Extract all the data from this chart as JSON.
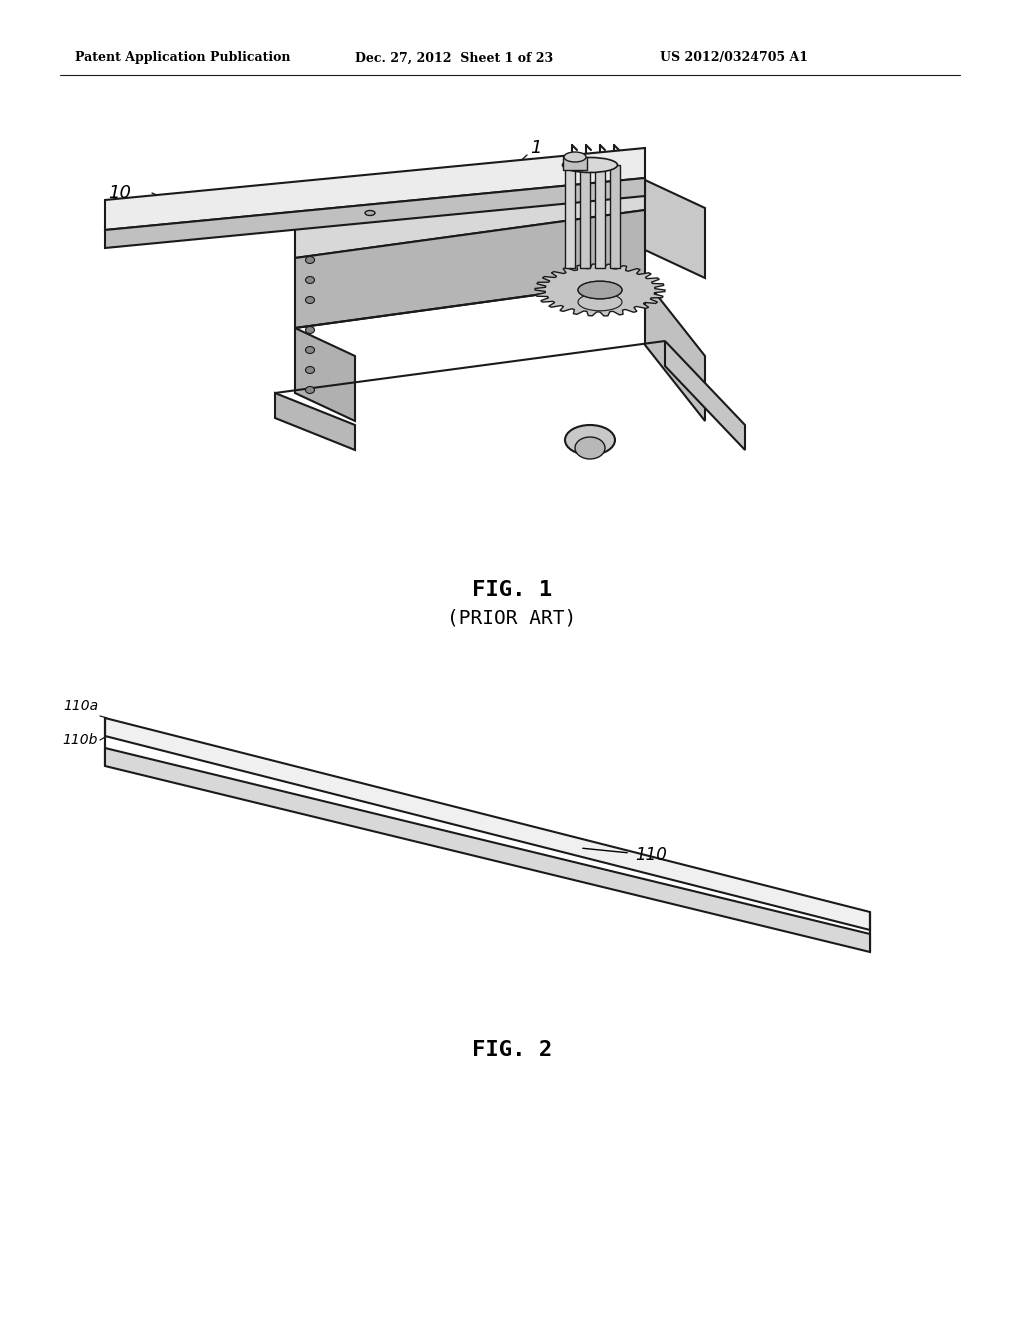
{
  "background_color": "#ffffff",
  "header_left": "Patent Application Publication",
  "header_center": "Dec. 27, 2012  Sheet 1 of 23",
  "header_right": "US 2012/0324705 A1",
  "fig1_label": "FIG. 1",
  "fig1_sublabel": "(PRIOR ART)",
  "fig2_label": "FIG. 2",
  "label_10": "10",
  "label_1": "1",
  "label_110": "110",
  "label_110a": "110a",
  "label_110b": "110b",
  "line_color": "#1a1a1a",
  "text_color": "#000000"
}
